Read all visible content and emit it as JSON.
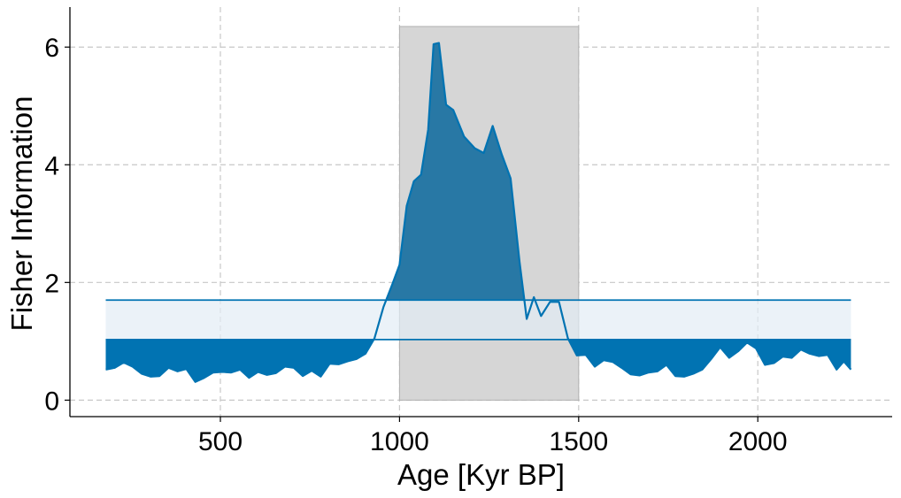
{
  "chart_data": {
    "type": "area",
    "title": "",
    "xlabel": "Age [Kyr BP]",
    "ylabel": "Fisher Information",
    "xlim": [
      80,
      2375
    ],
    "ylim": [
      -0.28,
      6.68
    ],
    "xticks": [
      500,
      1000,
      1500,
      2000
    ],
    "yticks": [
      0,
      2,
      4,
      6
    ],
    "grid": true,
    "colors": {
      "line": "#0173b2",
      "fill": "#0173b2",
      "fill_dark": "#2878a5",
      "band": "#e2edf5",
      "band_edge": "#0173b2",
      "highlight": "#d6d6d6",
      "grid": "#c8c8c8"
    },
    "highlight_span": {
      "x_start": 1000,
      "x_end": 1500,
      "y_top": 6.35
    },
    "threshold_band": {
      "lower": 1.03,
      "upper": 1.7,
      "x_start": 180,
      "x_end": 2260
    },
    "series": [
      {
        "x": [
          180,
          205,
          230,
          255,
          280,
          305,
          330,
          355,
          380,
          405,
          430,
          455,
          480,
          505,
          530,
          555,
          580,
          605,
          630,
          655,
          680,
          705,
          730,
          755,
          780,
          805,
          830,
          855,
          880,
          905,
          930,
          955,
          980,
          1000,
          1020,
          1040,
          1060,
          1080,
          1095,
          1110,
          1130,
          1150,
          1180,
          1210,
          1235,
          1260,
          1285,
          1310,
          1335,
          1355,
          1375,
          1395,
          1420,
          1445,
          1470,
          1495,
          1520,
          1545,
          1570,
          1595,
          1620,
          1645,
          1670,
          1695,
          1720,
          1745,
          1770,
          1795,
          1820,
          1845,
          1870,
          1895,
          1920,
          1945,
          1970,
          1995,
          2020,
          2045,
          2070,
          2095,
          2120,
          2145,
          2170,
          2195,
          2220,
          2240,
          2260
        ],
        "y": [
          0.52,
          0.55,
          0.64,
          0.57,
          0.45,
          0.4,
          0.41,
          0.55,
          0.49,
          0.53,
          0.31,
          0.38,
          0.47,
          0.48,
          0.47,
          0.52,
          0.38,
          0.48,
          0.43,
          0.46,
          0.57,
          0.55,
          0.41,
          0.5,
          0.4,
          0.62,
          0.61,
          0.66,
          0.7,
          0.79,
          1.05,
          1.58,
          1.97,
          2.3,
          3.3,
          3.72,
          3.83,
          4.6,
          6.05,
          6.07,
          5.02,
          4.93,
          4.48,
          4.28,
          4.2,
          4.66,
          4.18,
          3.77,
          2.35,
          1.38,
          1.75,
          1.43,
          1.67,
          1.67,
          1.05,
          0.76,
          0.77,
          0.57,
          0.68,
          0.65,
          0.55,
          0.44,
          0.42,
          0.47,
          0.49,
          0.6,
          0.41,
          0.4,
          0.45,
          0.52,
          0.7,
          0.9,
          0.72,
          0.83,
          0.98,
          0.88,
          0.6,
          0.63,
          0.74,
          0.72,
          0.86,
          0.79,
          0.75,
          0.77,
          0.52,
          0.66,
          0.52
        ]
      }
    ]
  }
}
